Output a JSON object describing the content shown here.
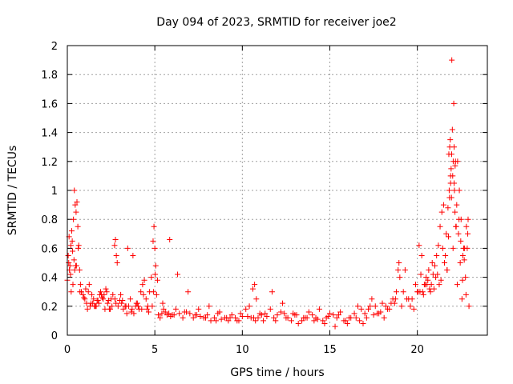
{
  "chart_data": {
    "type": "scatter",
    "title": "Day 094 of 2023, SRMTID for receiver joe2",
    "xlabel": "GPS time / hours",
    "ylabel": "SRMTID / TECUs",
    "xlim": [
      0,
      24
    ],
    "ylim": [
      0,
      2
    ],
    "xticks": [
      0,
      5,
      10,
      15,
      20
    ],
    "xtick_labels": [
      "0",
      "5",
      "10",
      "15",
      "20"
    ],
    "yticks": [
      0,
      0.2,
      0.4,
      0.6,
      0.8,
      1,
      1.2,
      1.4,
      1.6,
      1.8,
      2
    ],
    "ytick_labels": [
      "0",
      "0.2",
      "0.4",
      "0.6",
      "0.8",
      "1",
      "1.2",
      "1.4",
      "1.6",
      "1.8",
      "2"
    ],
    "grid": true,
    "marker": "+",
    "color": "#ff0000",
    "series": [
      {
        "name": "joe2",
        "x": [
          0.0,
          0.05,
          0.1,
          0.15,
          0.2,
          0.25,
          0.3,
          0.35,
          0.4,
          0.45,
          0.5,
          0.55,
          0.6,
          0.65,
          0.7,
          0.75,
          0.8,
          0.9,
          1.0,
          1.1,
          1.2,
          1.3,
          1.4,
          1.5,
          1.6,
          1.7,
          1.8,
          1.9,
          2.0,
          2.1,
          2.2,
          2.3,
          2.4,
          2.5,
          2.6,
          2.7,
          2.75,
          2.8,
          2.85,
          2.9,
          3.0,
          3.1,
          3.2,
          3.3,
          3.4,
          3.5,
          3.6,
          3.7,
          3.8,
          3.9,
          4.0,
          4.1,
          4.2,
          4.3,
          4.4,
          4.5,
          4.6,
          4.7,
          4.8,
          4.9,
          4.95,
          5.0,
          5.05,
          5.1,
          5.2,
          5.3,
          5.4,
          5.5,
          5.6,
          5.7,
          5.8,
          5.9,
          6.0,
          6.2,
          6.4,
          6.6,
          6.8,
          7.0,
          7.2,
          7.4,
          7.6,
          7.8,
          8.0,
          8.2,
          8.4,
          8.6,
          8.8,
          9.0,
          9.2,
          9.4,
          9.6,
          9.8,
          10.0,
          10.2,
          10.4,
          10.6,
          10.7,
          10.8,
          10.9,
          11.0,
          11.2,
          11.4,
          11.6,
          11.8,
          12.0,
          12.2,
          12.4,
          12.6,
          12.8,
          13.0,
          13.2,
          13.4,
          13.6,
          13.8,
          14.0,
          14.2,
          14.4,
          14.6,
          14.8,
          15.0,
          15.2,
          15.4,
          15.6,
          15.8,
          16.0,
          16.2,
          16.4,
          16.6,
          16.8,
          17.0,
          17.2,
          17.4,
          17.6,
          17.8,
          18.0,
          18.2,
          18.4,
          18.6,
          18.8,
          18.9,
          19.0,
          19.2,
          19.4,
          19.6,
          19.8,
          20.0,
          20.1,
          20.2,
          20.3,
          20.4,
          20.5,
          20.6,
          20.7,
          20.8,
          20.9,
          21.0,
          21.1,
          21.2,
          21.3,
          21.4,
          21.5,
          21.6,
          21.7,
          21.8,
          21.85,
          21.9,
          21.95,
          22.0,
          22.05,
          22.1,
          22.15,
          22.2,
          22.3,
          22.4,
          22.5,
          22.6,
          22.7,
          22.8,
          22.9,
          0.12,
          0.22,
          0.32,
          0.42,
          0.52,
          0.62,
          0.72,
          0.95,
          1.15,
          1.35,
          1.55,
          1.75,
          1.95,
          2.15,
          2.35,
          2.55,
          2.72,
          2.78,
          3.15,
          3.45,
          3.75,
          4.05,
          4.35,
          4.55,
          4.65,
          4.85,
          4.92,
          5.02,
          5.15,
          5.45,
          5.85,
          6.3,
          6.9,
          7.5,
          8.1,
          8.7,
          9.3,
          9.9,
          10.5,
          10.65,
          10.75,
          11.1,
          11.7,
          12.3,
          12.9,
          13.5,
          14.1,
          14.7,
          15.3,
          15.9,
          16.5,
          16.9,
          17.3,
          17.7,
          18.1,
          18.5,
          18.75,
          18.95,
          19.3,
          19.7,
          19.9,
          20.05,
          20.25,
          20.45,
          20.65,
          20.85,
          21.05,
          21.25,
          21.45,
          21.65,
          21.75,
          21.82,
          21.88,
          21.93,
          21.97,
          22.02,
          22.08,
          22.12,
          22.18,
          22.25,
          22.35,
          22.45,
          22.55,
          22.65,
          22.75,
          22.85,
          22.95,
          0.08,
          0.18,
          0.28,
          0.38,
          0.48,
          1.05,
          1.25,
          1.45,
          1.65,
          1.85,
          2.05,
          2.25,
          2.45,
          3.05,
          3.35,
          3.65,
          3.95,
          4.25,
          6.1,
          6.7,
          7.3,
          7.9,
          8.5,
          9.1,
          9.7,
          10.3,
          11.3,
          11.9,
          12.5,
          13.1,
          13.7,
          14.3,
          14.9,
          15.5,
          16.1,
          16.7,
          17.1,
          17.5,
          17.9,
          18.3,
          18.7,
          19.1,
          19.5,
          20.15,
          20.35,
          20.55,
          20.75,
          20.95,
          21.15,
          21.35,
          21.55,
          21.7,
          21.78,
          21.84,
          21.9,
          21.96,
          22.04,
          22.1,
          22.16,
          22.22,
          22.28,
          22.38,
          22.48,
          22.58,
          22.68,
          22.78,
          22.88
        ],
        "y": [
          0.38,
          0.55,
          0.68,
          0.48,
          0.62,
          0.72,
          0.58,
          0.8,
          1.0,
          0.9,
          0.85,
          0.92,
          0.75,
          0.62,
          0.45,
          0.35,
          0.3,
          0.28,
          0.25,
          0.22,
          0.3,
          0.2,
          0.28,
          0.25,
          0.2,
          0.24,
          0.22,
          0.3,
          0.26,
          0.28,
          0.32,
          0.22,
          0.18,
          0.25,
          0.28,
          0.62,
          0.66,
          0.55,
          0.5,
          0.2,
          0.24,
          0.22,
          0.18,
          0.2,
          0.15,
          0.2,
          0.25,
          0.18,
          0.15,
          0.2,
          0.22,
          0.18,
          0.3,
          0.35,
          0.38,
          0.25,
          0.2,
          0.3,
          0.4,
          0.65,
          0.75,
          0.6,
          0.48,
          0.28,
          0.14,
          0.12,
          0.15,
          0.18,
          0.16,
          0.14,
          0.15,
          0.13,
          0.14,
          0.18,
          0.15,
          0.12,
          0.16,
          0.15,
          0.12,
          0.14,
          0.13,
          0.12,
          0.14,
          0.1,
          0.12,
          0.15,
          0.11,
          0.12,
          0.1,
          0.14,
          0.12,
          0.1,
          0.13,
          0.18,
          0.2,
          0.32,
          0.35,
          0.25,
          0.12,
          0.15,
          0.1,
          0.13,
          0.18,
          0.12,
          0.14,
          0.16,
          0.15,
          0.12,
          0.1,
          0.14,
          0.08,
          0.1,
          0.12,
          0.16,
          0.14,
          0.12,
          0.18,
          0.1,
          0.12,
          0.15,
          0.14,
          0.12,
          0.16,
          0.1,
          0.08,
          0.12,
          0.15,
          0.2,
          0.18,
          0.15,
          0.18,
          0.25,
          0.2,
          0.15,
          0.22,
          0.2,
          0.18,
          0.25,
          0.3,
          0.45,
          0.4,
          0.3,
          0.25,
          0.2,
          0.18,
          0.3,
          0.62,
          0.42,
          0.3,
          0.35,
          0.4,
          0.38,
          0.32,
          0.35,
          0.42,
          0.48,
          0.55,
          0.62,
          0.75,
          0.85,
          0.9,
          0.55,
          0.45,
          1.25,
          1.3,
          1.1,
          0.95,
          1.42,
          1.2,
          1.05,
          0.85,
          0.75,
          1.2,
          1.0,
          0.8,
          0.55,
          0.6,
          0.75,
          0.8,
          0.45,
          0.3,
          0.35,
          0.45,
          0.48,
          0.6,
          0.3,
          0.26,
          0.18,
          0.22,
          0.2,
          0.24,
          0.28,
          0.18,
          0.24,
          0.2,
          0.25,
          0.22,
          0.24,
          0.6,
          0.55,
          0.2,
          0.28,
          0.18,
          0.16,
          0.2,
          0.3,
          0.42,
          0.38,
          0.22,
          0.66,
          0.42,
          0.3,
          0.18,
          0.2,
          0.16,
          0.12,
          0.15,
          0.12,
          0.12,
          0.1,
          0.14,
          0.3,
          0.22,
          0.15,
          0.12,
          0.1,
          0.08,
          0.06,
          0.1,
          0.12,
          0.08,
          0.2,
          0.15,
          0.12,
          0.22,
          0.25,
          0.5,
          0.45,
          0.25,
          0.35,
          0.3,
          0.55,
          0.35,
          0.45,
          0.5,
          0.4,
          0.35,
          0.6,
          0.7,
          0.88,
          1.0,
          1.35,
          1.15,
          1.9,
          1.1,
          1.6,
          1.0,
          1.2,
          0.9,
          0.7,
          0.5,
          0.25,
          0.6,
          0.4,
          0.6,
          0.2,
          0.5,
          0.42,
          0.65,
          0.52,
          0.48,
          0.32,
          0.35,
          0.22,
          0.2,
          0.28,
          0.25,
          0.3,
          0.18,
          0.28,
          0.2,
          0.16,
          0.22,
          0.18,
          0.14,
          0.16,
          0.14,
          0.12,
          0.1,
          0.12,
          0.1,
          0.13,
          0.15,
          0.1,
          0.12,
          0.14,
          0.12,
          0.11,
          0.13,
          0.14,
          0.12,
          0.1,
          0.12,
          0.14,
          0.16,
          0.18,
          0.22,
          0.2,
          0.25,
          0.3,
          0.28,
          0.35,
          0.3,
          0.32,
          0.42,
          0.38,
          0.5,
          0.45,
          0.68,
          0.95,
          1.05,
          1.25,
          0.6,
          1.3,
          1.17,
          0.75,
          0.35,
          0.8,
          0.65,
          0.38,
          0.52,
          0.28,
          0.7
        ]
      }
    ]
  }
}
